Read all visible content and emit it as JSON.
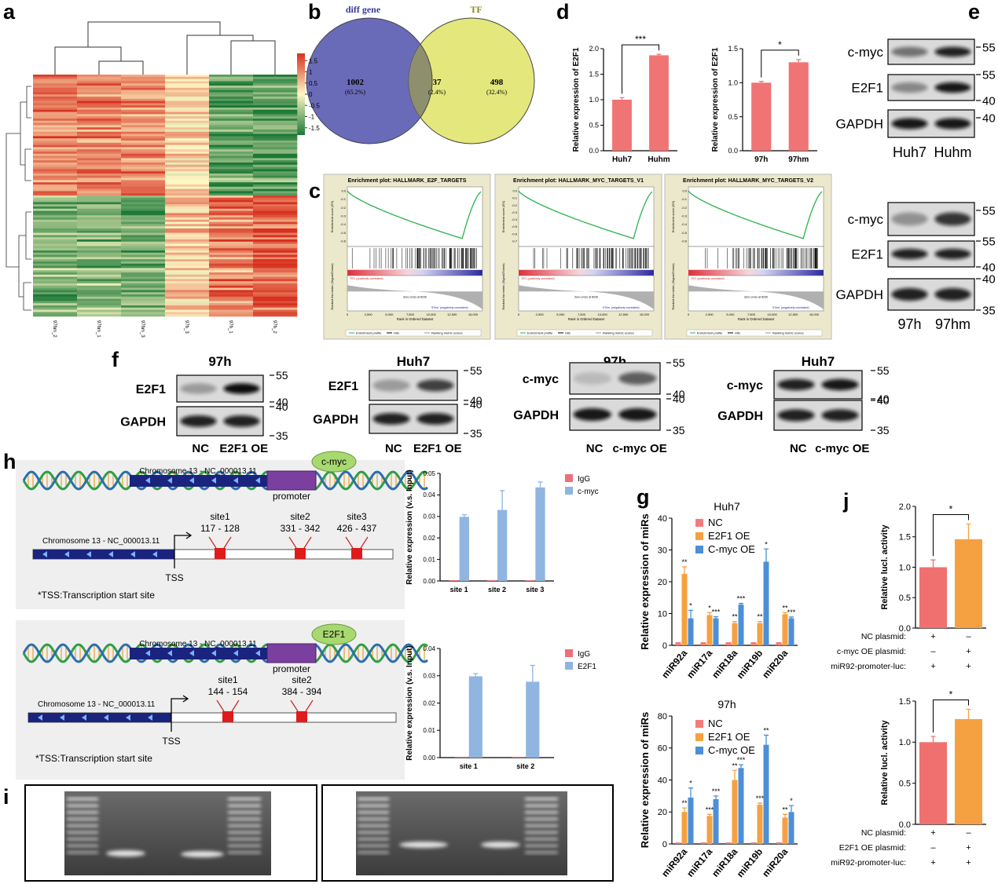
{
  "panel_labels": [
    "a",
    "b",
    "c",
    "d",
    "e",
    "f",
    "h",
    "g",
    "j",
    "i"
  ],
  "heatmap": {
    "columns": [
      "97hm_2",
      "97hm_1",
      "97hm_3",
      "97h_3",
      "97h_1",
      "97h_2"
    ],
    "colorbar_ticks": [
      1.5,
      1,
      0.5,
      0,
      -0.5,
      -1,
      -1.5
    ]
  },
  "venn": {
    "left": "diff gene",
    "right": "TF",
    "regions": [
      {
        "count": 1002,
        "percent": "(65.2%)"
      },
      {
        "count": 37,
        "percent": "(2.4%)"
      },
      {
        "count": 498,
        "percent": "(32.4%)"
      }
    ]
  },
  "gsea": {
    "plots": [
      {
        "title": "Enrichment plot: HALLMARK_E2F_TARGETS",
        "yticks": [
          "0.0",
          "-0.1",
          "-0.2",
          "-0.3",
          "-0.4",
          "-0.5",
          "-0.6"
        ]
      },
      {
        "title": "Enrichment plot: HALLMARK_MYC_TARGETS_V1",
        "yticks": [
          "0.0",
          "-0.1",
          "-0.2",
          "-0.3",
          "-0.4",
          "-0.5",
          "-0.6",
          "-0.7"
        ]
      },
      {
        "title": "Enrichment plot: HALLMARK_MYC_TARGETS_V2",
        "yticks": [
          "0.0",
          "-0.1",
          "-0.2",
          "-0.3",
          "-0.4",
          "-0.5",
          "-0.6"
        ]
      }
    ],
    "es_label": "Enrichment score (ES)",
    "metric_label": "Ranked list metric (Signal2Noise)",
    "x_label": "Rank in Ordered Dataset",
    "pos_label": "'97h' (positively correlated)",
    "neg_label": "'97hm' (negatively correlated)",
    "zero_cross": "Zero cross at 8230",
    "xticks": [
      "0",
      "2,500",
      "5,000",
      "7,500",
      "10,000",
      "12,500",
      "15,000"
    ],
    "legend": [
      "Enrichment profile",
      "Hits",
      "Ranking metric scores"
    ]
  },
  "western_e": [
    {
      "rows": [
        {
          "label": "c-myc",
          "markers": [
            55
          ]
        },
        {
          "label": "E2F1",
          "markers": [
            55,
            40
          ]
        },
        {
          "label": "GAPDH",
          "markers": [
            40
          ]
        }
      ],
      "lanes": [
        "Huh7",
        "Huhm"
      ]
    },
    {
      "rows": [
        {
          "label": "c-myc",
          "markers": [
            55
          ]
        },
        {
          "label": "E2F1",
          "markers": [
            55,
            40
          ]
        },
        {
          "label": "GAPDH",
          "markers": [
            40,
            35
          ]
        }
      ],
      "lanes": [
        "97h",
        "97hm"
      ]
    }
  ],
  "western_f": [
    {
      "title": "97h",
      "rows": [
        {
          "label": "E2F1",
          "markers": [
            55,
            40
          ]
        },
        {
          "label": "GAPDH",
          "markers": [
            40,
            35
          ]
        }
      ],
      "lanes": [
        "NC",
        "E2F1 OE"
      ]
    },
    {
      "title": "Huh7",
      "rows": [
        {
          "label": "E2F1",
          "markers": [
            55,
            40
          ]
        },
        {
          "label": "GAPDH",
          "markers": [
            40,
            35
          ]
        }
      ],
      "lanes": [
        "NC",
        "E2F1 OE"
      ]
    },
    {
      "title": "97h",
      "rows": [
        {
          "label": "c-myc",
          "markers": [
            55,
            40
          ]
        },
        {
          "label": "GAPDH",
          "markers": [
            40,
            35
          ]
        }
      ],
      "lanes": [
        "NC",
        "c-myc OE"
      ]
    },
    {
      "title": "Huh7",
      "rows": [
        {
          "label": "c-myc",
          "markers": [
            55,
            40
          ]
        },
        {
          "label": "GAPDH",
          "markers": [
            40,
            35
          ]
        }
      ],
      "lanes": [
        "NC",
        "c-myc OE"
      ]
    }
  ],
  "diagram_h": [
    {
      "factor": "c-myc",
      "chromosome": "Chromosome 13 - NC_000013.11",
      "promoter": "promoter",
      "detail_chromosome": "Chromosome 13 - NC_000013.11",
      "sites": [
        {
          "name": "site1",
          "range": "117 - 128"
        },
        {
          "name": "site2",
          "range": "331 - 342"
        },
        {
          "name": "site3",
          "range": "426 - 437"
        }
      ],
      "tss": "TSS",
      "note": "*TSS:Transcription start site"
    },
    {
      "factor": "E2F1",
      "chromosome": "Chromosome 13 - NC_000013.11",
      "promoter": "promoter",
      "detail_chromosome": "Chromosome 13 - NC_000013.11",
      "sites": [
        {
          "name": "site1",
          "range": "144 - 154"
        },
        {
          "name": "site2",
          "range": "384 - 394"
        }
      ],
      "tss": "TSS",
      "note": "*TSS:Transcription start site"
    }
  ],
  "chart_data": [
    {
      "type": "bar",
      "y_label": "Relative expression of E2F1",
      "categories": [
        "Huh7",
        "Huhm"
      ],
      "values": [
        1.0,
        1.87
      ],
      "errors": [
        0.04,
        0.02
      ],
      "color": "#f07474",
      "ylim": [
        0,
        2
      ],
      "yticks": [
        {
          "value": 0,
          "label": "0.0"
        },
        0.5,
        {
          "value": 1,
          "label": "1.0"
        },
        1.5,
        {
          "value": 2,
          "label": "2.0"
        }
      ],
      "significance": "***"
    },
    {
      "type": "bar",
      "y_label": "Relative expression of E2F1",
      "categories": [
        "97h",
        "97hm"
      ],
      "values": [
        1.0,
        1.3
      ],
      "errors": [
        0.02,
        0.04
      ],
      "color": "#f07474",
      "ylim": [
        0,
        1.5
      ],
      "yticks": [
        {
          "value": 0,
          "label": "0.0"
        },
        0.5,
        {
          "value": 1,
          "label": "1.0"
        },
        1.5
      ],
      "significance": "*"
    },
    {
      "type": "bar",
      "y_label": "Relative expression (v.s. Input)",
      "categories": [
        "site 1",
        "site 2",
        "site 3"
      ],
      "series": [
        {
          "name": "IgG",
          "color": "#ef6f79",
          "values": [
            0.0003,
            0.0003,
            0.0003
          ]
        },
        {
          "name": "c-myc",
          "color": "#8fb5e0",
          "values": [
            0.0298,
            0.033,
            0.0435
          ],
          "errors": [
            0.001,
            0.009,
            0.0025
          ]
        }
      ],
      "ylim": [
        0,
        0.05
      ],
      "yticks": [
        {
          "value": 0,
          "label": "0.00"
        },
        0.01,
        0.02,
        0.03,
        0.04,
        0.05
      ],
      "legend": "upper right"
    },
    {
      "type": "bar",
      "y_label": "Relative expression (v.s. Input)",
      "categories": [
        "site 1",
        "site 2"
      ],
      "series": [
        {
          "name": "IgG",
          "color": "#ef6f79",
          "values": [
            0.0003,
            0.0003
          ]
        },
        {
          "name": "E2F1",
          "color": "#8fb5e0",
          "values": [
            0.0298,
            0.0278
          ],
          "errors": [
            0.001,
            0.006
          ]
        }
      ],
      "ylim": [
        0,
        0.04
      ],
      "yticks": [
        {
          "value": 0,
          "label": "0.00"
        },
        0.01,
        0.02,
        0.03,
        0.04
      ],
      "legend": "upper right"
    },
    {
      "type": "bar",
      "title": "Huh7",
      "y_label": "Relative expression of miRs",
      "categories": [
        "miR92a",
        "miR17a",
        "miR18a",
        "miR19b",
        "miR20a"
      ],
      "series": [
        {
          "name": "NC",
          "color": "#f47c7c",
          "values": [
            1,
            1,
            1,
            1,
            1
          ]
        },
        {
          "name": "E2F1 OE",
          "color": "#f5a142",
          "values": [
            22.5,
            9.5,
            7,
            7,
            9.8
          ],
          "errors": [
            2.2,
            0.8,
            0.5,
            0.5,
            0.5
          ],
          "sig": [
            "**",
            "*",
            "**",
            "**",
            "**"
          ]
        },
        {
          "name": "C-myc OE",
          "color": "#4c8fd6",
          "values": [
            8.5,
            8.5,
            12.8,
            26.3,
            8.5
          ],
          "errors": [
            2.5,
            0.5,
            0.4,
            4,
            0.4
          ],
          "sig": [
            "*",
            "***",
            "***",
            "*",
            "***"
          ]
        }
      ],
      "ylim": [
        0,
        40
      ],
      "yticks": [
        0,
        10,
        20,
        30,
        40
      ],
      "legend": "upper left"
    },
    {
      "type": "bar",
      "title": "97h",
      "y_label": "Relative expression of miRs",
      "categories": [
        "miR92a",
        "miR17a",
        "miR18a",
        "miR19b",
        "miR20a"
      ],
      "series": [
        {
          "name": "NC",
          "color": "#f47c7c",
          "values": [
            1,
            1,
            1,
            1,
            1
          ]
        },
        {
          "name": "E2F1 OE",
          "color": "#f5a142",
          "values": [
            20,
            17.5,
            40,
            24.5,
            16.5
          ],
          "errors": [
            2.5,
            1,
            6,
            1,
            2
          ],
          "sig": [
            "**",
            "***",
            "**",
            "***",
            "**"
          ]
        },
        {
          "name": "C-myc OE",
          "color": "#4c8fd6",
          "values": [
            29,
            28,
            47.5,
            62,
            20
          ],
          "errors": [
            6,
            2,
            2,
            6,
            4
          ],
          "sig": [
            "*",
            "***",
            "***",
            "**",
            "*"
          ]
        }
      ],
      "ylim": [
        0,
        80
      ],
      "yticks": [
        0,
        20,
        40,
        60,
        80
      ],
      "legend": "upper left"
    },
    {
      "type": "bar",
      "y_label": "Relative lucl. activity",
      "values": [
        1.0,
        1.46
      ],
      "errors": [
        0.12,
        0.25
      ],
      "colors": [
        "#f07070",
        "#f5a142"
      ],
      "ylim": [
        0,
        2
      ],
      "yticks": [
        {
          "value": 0,
          "label": "0.0"
        },
        0.5,
        {
          "value": 1,
          "label": "1.0"
        },
        1.5,
        {
          "value": 2,
          "label": "2.0"
        }
      ],
      "significance": "*",
      "conditions": [
        {
          "label": "NC plasmid:",
          "marks": [
            "+",
            "–"
          ]
        },
        {
          "label": "c-myc OE plasmid:",
          "marks": [
            "–",
            "+"
          ]
        },
        {
          "label": "miR92-promoter-luc:",
          "marks": [
            "+",
            "+"
          ]
        }
      ]
    },
    {
      "type": "bar",
      "y_label": "Relative lucl. activity",
      "values": [
        1.0,
        1.28
      ],
      "errors": [
        0.07,
        0.12
      ],
      "colors": [
        "#f07070",
        "#f5a142"
      ],
      "ylim": [
        0,
        1.5
      ],
      "yticks": [
        {
          "value": 0,
          "label": "0.0"
        },
        0.5,
        {
          "value": 1,
          "label": "1.0"
        },
        1.5
      ],
      "significance": "*",
      "conditions": [
        {
          "label": "NC plasmid:",
          "marks": [
            "+",
            "–"
          ]
        },
        {
          "label": "E2F1 OE plasmid:",
          "marks": [
            "–",
            "+"
          ]
        },
        {
          "label": "miR92-promoter-luc:",
          "marks": [
            "+",
            "+"
          ]
        }
      ]
    }
  ]
}
